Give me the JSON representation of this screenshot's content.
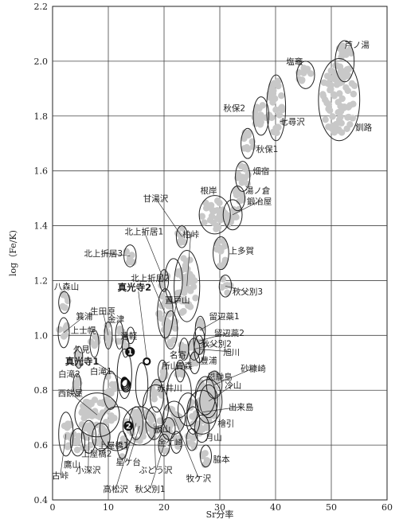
{
  "chart_data": {
    "type": "scatter",
    "title": "",
    "xlabel": "Sr分率",
    "ylabel": "log（Fe/K)",
    "xlim": [
      0,
      60
    ],
    "ylim": [
      0.4,
      2.2
    ],
    "x_ticks": [
      "0",
      "10",
      "20",
      "30",
      "40",
      "50",
      "60"
    ],
    "y_ticks": [
      "0.4",
      "0.6",
      "0.8",
      "1.0",
      "1.2",
      "1.4",
      "1.6",
      "1.8",
      "2.0",
      "2.2"
    ],
    "grid": true,
    "legend": "none",
    "markers": [
      {
        "label": "1",
        "x": 13.9,
        "y": 0.94
      },
      {
        "label": "2",
        "x": 13.6,
        "y": 0.67
      }
    ],
    "special_points": [
      {
        "label": "真光寺1",
        "x": 12.9,
        "y": 0.83
      },
      {
        "label": "真光寺2",
        "x": 16.9,
        "y": 0.905
      }
    ],
    "sites": [
      {
        "label": "芦ノ湯",
        "x": 52.4,
        "y": 2.0,
        "rx": 1.7,
        "ry": 0.075,
        "lx": 54.6,
        "ly": 2.06
      },
      {
        "label": "塩竈",
        "x": 45.4,
        "y": 1.95,
        "rx": 1.6,
        "ry": 0.05,
        "lx": 43.4,
        "ly": 2.0
      },
      {
        "label": "秋保2",
        "x": 37.4,
        "y": 1.8,
        "rx": 1.4,
        "ry": 0.07,
        "lx": 32.6,
        "ly": 1.83
      },
      {
        "label": "七尋沢",
        "x": 40.1,
        "y": 1.83,
        "rx": 1.7,
        "ry": 0.12,
        "lx": 43.0,
        "ly": 1.78
      },
      {
        "label": "釧路",
        "x": 51.4,
        "y": 1.86,
        "rx": 3.7,
        "ry": 0.15,
        "lx": 55.8,
        "ly": 1.76
      },
      {
        "label": "秋保1",
        "x": 35.0,
        "y": 1.7,
        "rx": 1.2,
        "ry": 0.055,
        "lx": 38.5,
        "ly": 1.68
      },
      {
        "label": "畑宿",
        "x": 34.1,
        "y": 1.58,
        "rx": 1.3,
        "ry": 0.055,
        "lx": 37.4,
        "ly": 1.6
      },
      {
        "label": "湯ノ倉",
        "x": 33.2,
        "y": 1.5,
        "rx": 1.3,
        "ry": 0.045,
        "lx": 36.8,
        "ly": 1.53
      },
      {
        "label": "根岸",
        "x": 29.1,
        "y": 1.44,
        "rx": 2.8,
        "ry": 0.07,
        "lx": 28.0,
        "ly": 1.53
      },
      {
        "label": "鍛冶屋",
        "x": 32.3,
        "y": 1.44,
        "rx": 1.7,
        "ry": 0.055,
        "lx": 37.1,
        "ly": 1.49
      },
      {
        "label": "甘湯沢",
        "x": 23.2,
        "y": 1.36,
        "rx": 1.0,
        "ry": 0.04,
        "lx": 18.5,
        "ly": 1.5
      },
      {
        "label": "北上折居1",
        "x": 20.0,
        "y": 1.2,
        "rx": 0.8,
        "ry": 0.04,
        "lx": 16.4,
        "ly": 1.38
      },
      {
        "label": "北上折居3",
        "x": 13.9,
        "y": 1.29,
        "rx": 1.1,
        "ry": 0.04,
        "lx": 9.1,
        "ly": 1.3
      },
      {
        "label": "柏峠",
        "x": 24.1,
        "y": 1.18,
        "rx": 2.3,
        "ry": 0.13,
        "lx": 24.8,
        "ly": 1.37
      },
      {
        "label": "上多賀",
        "x": 30.2,
        "y": 1.3,
        "rx": 1.4,
        "ry": 0.06,
        "lx": 33.9,
        "ly": 1.31
      },
      {
        "label": "北上折居2",
        "x": 20.2,
        "y": 1.08,
        "rx": 1.4,
        "ry": 0.09,
        "lx": 17.5,
        "ly": 1.21
      },
      {
        "label": "秋父別3",
        "x": 31.0,
        "y": 1.18,
        "rx": 1.1,
        "ry": 0.04,
        "lx": 35.0,
        "ly": 1.16
      },
      {
        "label": "八森山",
        "x": 2.1,
        "y": 1.12,
        "rx": 1.0,
        "ry": 0.04,
        "lx": 2.5,
        "ly": 1.18
      },
      {
        "label": "置戸山",
        "x": 21.2,
        "y": 1.02,
        "rx": 1.2,
        "ry": 0.07,
        "lx": 22.4,
        "ly": 1.13
      },
      {
        "label": "生田原",
        "x": 10.0,
        "y": 1.0,
        "rx": 0.7,
        "ry": 0.05,
        "lx": 9.0,
        "ly": 1.09
      },
      {
        "label": "金津",
        "x": 12.0,
        "y": 1.0,
        "rx": 0.7,
        "ry": 0.05,
        "lx": 11.4,
        "ly": 1.06
      },
      {
        "label": "箕浦",
        "x": 2.0,
        "y": 1.01,
        "rx": 1.0,
        "ry": 0.055,
        "lx": 5.7,
        "ly": 1.07
      },
      {
        "label": "留辺蘂1",
        "x": 26.5,
        "y": 1.02,
        "rx": 0.9,
        "ry": 0.05,
        "lx": 30.8,
        "ly": 1.07
      },
      {
        "label": "上士幌",
        "x": 7.5,
        "y": 0.97,
        "rx": 0.8,
        "ry": 0.05,
        "lx": 5.5,
        "ly": 1.02
      },
      {
        "label": "遠軽",
        "x": 13.1,
        "y": 0.96,
        "rx": 0.6,
        "ry": 0.04,
        "lx": 13.7,
        "ly": 1.0
      },
      {
        "label": "留辺蘂2",
        "x": 26.3,
        "y": 0.98,
        "rx": 1.0,
        "ry": 0.05,
        "lx": 31.7,
        "ly": 1.01
      },
      {
        "label": "久見",
        "x": 4.7,
        "y": 0.92,
        "rx": 0.7,
        "ry": 0.04,
        "lx": 5.2,
        "ly": 0.95
      },
      {
        "label": "秋父別2",
        "x": 25.4,
        "y": 0.95,
        "rx": 1.0,
        "ry": 0.04,
        "lx": 29.4,
        "ly": 0.97
      },
      {
        "label": "名寄",
        "x": 23.6,
        "y": 0.95,
        "rx": 0.8,
        "ry": 0.04,
        "lx": 22.5,
        "ly": 0.93
      },
      {
        "label": "旭川",
        "x": 26.3,
        "y": 0.95,
        "rx": 0.9,
        "ry": 0.05,
        "lx": 32.1,
        "ly": 0.94
      },
      {
        "label": "豊浦",
        "x": 25.5,
        "y": 0.9,
        "rx": 0.9,
        "ry": 0.04,
        "lx": 28.0,
        "ly": 0.91
      },
      {
        "label": "青森",
        "x": 22.9,
        "y": 0.87,
        "rx": 0.8,
        "ry": 0.04,
        "lx": 23.6,
        "ly": 0.89
      },
      {
        "label": "所山",
        "x": 19.7,
        "y": 0.87,
        "rx": 0.8,
        "ry": 0.04,
        "lx": 21.1,
        "ly": 0.89
      },
      {
        "label": "白滝2",
        "x": 4.4,
        "y": 0.82,
        "rx": 0.7,
        "ry": 0.04,
        "lx": 3.0,
        "ly": 0.86
      },
      {
        "label": "白滝1",
        "x": 10.4,
        "y": 0.8,
        "rx": 1.3,
        "ry": 0.07,
        "lx": 8.7,
        "ly": 0.87
      },
      {
        "label": "砂糠崎",
        "x": 29.0,
        "y": 0.82,
        "rx": 1.4,
        "ry": 0.05,
        "lx": 36.0,
        "ly": 0.88
      },
      {
        "label": "恩馳島",
        "x": 27.4,
        "y": 0.78,
        "rx": 1.8,
        "ry": 0.07,
        "lx": 30.0,
        "ly": 0.85
      },
      {
        "label": "赤井川",
        "x": 18.7,
        "y": 0.78,
        "rx": 1.2,
        "ry": 0.06,
        "lx": 21.0,
        "ly": 0.81
      },
      {
        "label": "冷山",
        "x": 28.0,
        "y": 0.76,
        "rx": 1.6,
        "ry": 0.06,
        "lx": 32.4,
        "ly": 0.82
      },
      {
        "label": "西餅屋",
        "x": 8.0,
        "y": 0.71,
        "rx": 4.0,
        "ry": 0.08,
        "lx": 3.2,
        "ly": 0.79
      },
      {
        "label": "出来島",
        "x": 26.8,
        "y": 0.72,
        "rx": 2.7,
        "ry": 0.08,
        "lx": 33.8,
        "ly": 0.74
      },
      {
        "label": "板山",
        "x": 20.8,
        "y": 0.66,
        "rx": 1.2,
        "ry": 0.04,
        "lx": 19.7,
        "ly": 0.66
      },
      {
        "label": "檜引",
        "x": 26.8,
        "y": 0.66,
        "rx": 1.3,
        "ry": 0.05,
        "lx": 31.1,
        "ly": 0.68
      },
      {
        "label": "月山",
        "x": 25.0,
        "y": 0.62,
        "rx": 1.0,
        "ry": 0.04,
        "lx": 28.9,
        "ly": 0.63
      },
      {
        "label": "金ケ崎",
        "x": 22.2,
        "y": 0.61,
        "rx": 1.0,
        "ry": 0.04,
        "lx": 21.1,
        "ly": 0.61
      },
      {
        "label": "上屋橋1",
        "x": 12.5,
        "y": 0.6,
        "rx": 0.9,
        "ry": 0.05,
        "lx": 10.9,
        "ly": 0.6
      },
      {
        "label": "上屋橋2",
        "x": 8.7,
        "y": 0.63,
        "rx": 1.6,
        "ry": 0.05,
        "lx": 7.9,
        "ly": 0.57
      },
      {
        "label": "脇本",
        "x": 27.5,
        "y": 0.56,
        "rx": 1.0,
        "ry": 0.04,
        "lx": 30.3,
        "ly": 0.55
      },
      {
        "label": "鷹山",
        "x": 4.5,
        "y": 0.61,
        "rx": 1.3,
        "ry": 0.05,
        "lx": 3.5,
        "ly": 0.53
      },
      {
        "label": "小深沢",
        "x": 6.5,
        "y": 0.63,
        "rx": 1.3,
        "ry": 0.06,
        "lx": 6.4,
        "ly": 0.51
      },
      {
        "label": "古峠",
        "x": 2.4,
        "y": 0.64,
        "rx": 1.3,
        "ry": 0.08,
        "lx": 1.4,
        "ly": 0.49
      },
      {
        "label": "星ケ台",
        "x": 15.6,
        "y": 0.67,
        "rx": 3.0,
        "ry": 0.07,
        "lx": 13.6,
        "ly": 0.54
      },
      {
        "label": "ぶどう沢",
        "x": 18.2,
        "y": 0.68,
        "rx": 1.5,
        "ry": 0.06,
        "lx": 18.5,
        "ly": 0.51
      },
      {
        "label": "牧ケ沢",
        "x": 21.8,
        "y": 0.7,
        "rx": 2.0,
        "ry": 0.06,
        "lx": 26.2,
        "ly": 0.48
      },
      {
        "label": "高松沢",
        "x": 15.0,
        "y": 0.68,
        "rx": 1.2,
        "ry": 0.06,
        "lx": 11.3,
        "ly": 0.44
      },
      {
        "label": "秋父別1",
        "x": 20.0,
        "y": 0.6,
        "rx": 1.0,
        "ry": 0.04,
        "lx": 17.5,
        "ly": 0.44
      }
    ],
    "extra_outlines": [
      {
        "x": 21.7,
        "y": 1.2,
        "rx": 1.6,
        "ry": 0.08
      },
      {
        "x": 12.9,
        "y": 0.86,
        "rx": 1.3,
        "ry": 0.09
      },
      {
        "x": 16.0,
        "y": 0.82,
        "rx": 1.1,
        "ry": 0.08
      },
      {
        "x": 11.5,
        "y": 0.66,
        "rx": 3.0,
        "ry": 0.08
      },
      {
        "x": 18.5,
        "y": 0.74,
        "rx": 2.3,
        "ry": 0.08
      },
      {
        "x": 22.7,
        "y": 0.79,
        "rx": 2.2,
        "ry": 0.09
      },
      {
        "x": 24.3,
        "y": 0.73,
        "rx": 1.8,
        "ry": 0.06
      },
      {
        "x": 25.2,
        "y": 0.69,
        "rx": 1.2,
        "ry": 0.05
      },
      {
        "x": 28.0,
        "y": 0.76,
        "rx": 2.4,
        "ry": 0.08
      },
      {
        "x": 14.0,
        "y": 1.0,
        "rx": 0.7,
        "ry": 0.03
      }
    ]
  }
}
